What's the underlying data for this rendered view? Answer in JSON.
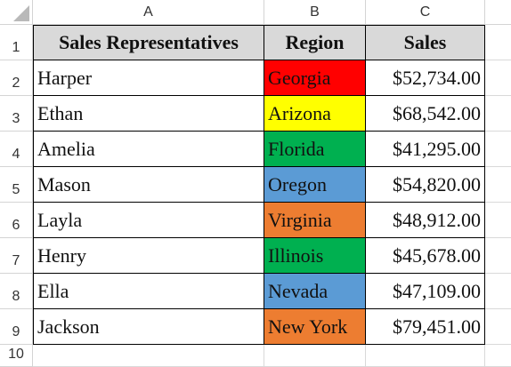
{
  "spreadsheet": {
    "columns": [
      "A",
      "B",
      "C"
    ],
    "rows": [
      "1",
      "2",
      "3",
      "4",
      "5",
      "6",
      "7",
      "8",
      "9",
      "10"
    ],
    "header": {
      "rep": "Sales Representatives",
      "region": "Region",
      "sales": "Sales"
    },
    "data": [
      {
        "rep": "Harper",
        "region": "Georgia",
        "region_color": "#ff0000",
        "sales": "$52,734.00"
      },
      {
        "rep": "Ethan",
        "region": "Arizona",
        "region_color": "#ffff00",
        "sales": "$68,542.00"
      },
      {
        "rep": "Amelia",
        "region": "Florida",
        "region_color": "#00b050",
        "sales": "$41,295.00"
      },
      {
        "rep": "Mason",
        "region": "Oregon",
        "region_color": "#5b9bd5",
        "sales": "$54,820.00"
      },
      {
        "rep": "Layla",
        "region": "Virginia",
        "region_color": "#ed7d31",
        "sales": "$48,912.00"
      },
      {
        "rep": "Henry",
        "region": "Illinois",
        "region_color": "#00b050",
        "sales": "$45,678.00"
      },
      {
        "rep": "Ella",
        "region": "Nevada",
        "region_color": "#5b9bd5",
        "sales": "$47,109.00"
      },
      {
        "rep": "Jackson",
        "region": "New York",
        "region_color": "#ed7d31",
        "sales": "$79,451.00"
      }
    ],
    "header_fill": "#d9d9d9"
  }
}
